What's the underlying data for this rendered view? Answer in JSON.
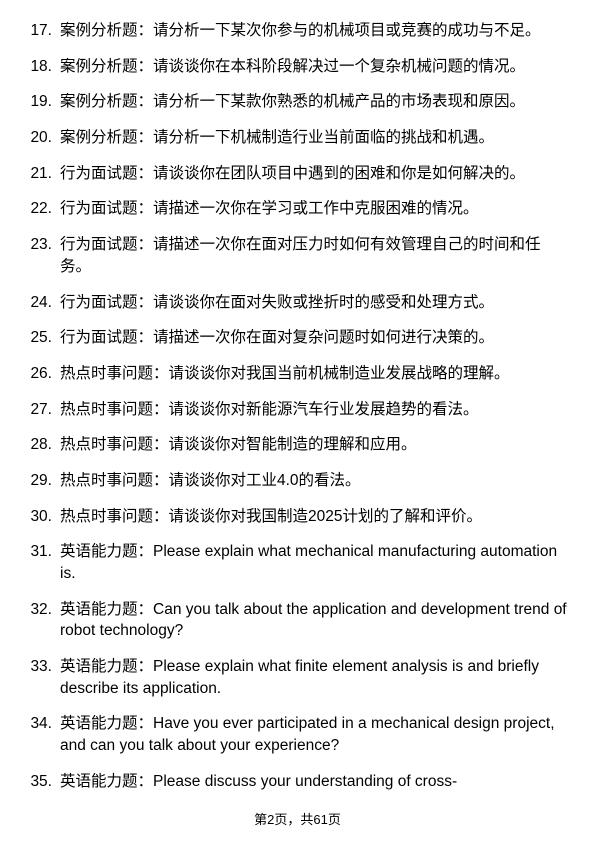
{
  "questions": [
    {
      "num": "17.",
      "text": "案例分析题：请分析一下某次你参与的机械项目或竞赛的成功与不足。"
    },
    {
      "num": "18.",
      "text": "案例分析题：请谈谈你在本科阶段解决过一个复杂机械问题的情况。"
    },
    {
      "num": "19.",
      "text": "案例分析题：请分析一下某款你熟悉的机械产品的市场表现和原因。"
    },
    {
      "num": "20.",
      "text": "案例分析题：请分析一下机械制造行业当前面临的挑战和机遇。"
    },
    {
      "num": "21.",
      "text": "行为面试题：请谈谈你在团队项目中遇到的困难和你是如何解决的。"
    },
    {
      "num": "22.",
      "text": "行为面试题：请描述一次你在学习或工作中克服困难的情况。"
    },
    {
      "num": "23.",
      "text": "行为面试题：请描述一次你在面对压力时如何有效管理自己的时间和任务。"
    },
    {
      "num": "24.",
      "text": "行为面试题：请谈谈你在面对失败或挫折时的感受和处理方式。"
    },
    {
      "num": "25.",
      "text": "行为面试题：请描述一次你在面对复杂问题时如何进行决策的。"
    },
    {
      "num": "26.",
      "text": "热点时事问题：请谈谈你对我国当前机械制造业发展战略的理解。"
    },
    {
      "num": "27.",
      "text": "热点时事问题：请谈谈你对新能源汽车行业发展趋势的看法。"
    },
    {
      "num": "28.",
      "text": "热点时事问题：请谈谈你对智能制造的理解和应用。"
    },
    {
      "num": "29.",
      "text": "热点时事问题：请谈谈你对工业4.0的看法。"
    },
    {
      "num": "30.",
      "text": "热点时事问题：请谈谈你对我国制造2025计划的了解和评价。"
    },
    {
      "num": "31.",
      "text": "英语能力题：Please explain what mechanical manufacturing automation is."
    },
    {
      "num": "32.",
      "text": "英语能力题：Can you talk about the application and development trend of robot technology?"
    },
    {
      "num": "33.",
      "text": "英语能力题：Please explain what finite element analysis is and briefly describe its application."
    },
    {
      "num": "34.",
      "text": "英语能力题：Have you ever participated in a mechanical design project, and can you talk about your experience?"
    },
    {
      "num": "35.",
      "text": "英语能力题：Please discuss your understanding of cross-"
    }
  ],
  "footer": "第2页，共61页"
}
